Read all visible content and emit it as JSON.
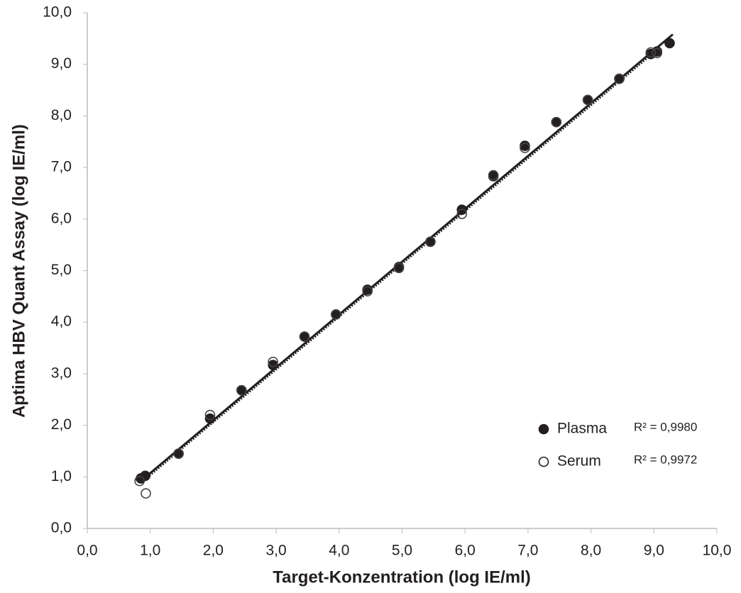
{
  "chart_data": {
    "type": "scatter",
    "x_label": "Target-Konzentration (log IE/ml)",
    "y_label": "Aptima HBV Quant Assay (log IE/ml)",
    "xlim": [
      0,
      10
    ],
    "ylim": [
      0,
      10
    ],
    "xticks": [
      {
        "value": 0,
        "label": "0,0"
      },
      {
        "value": 1,
        "label": "1,0"
      },
      {
        "value": 2,
        "label": "2,0"
      },
      {
        "value": 3,
        "label": "3,0"
      },
      {
        "value": 4,
        "label": "4,0"
      },
      {
        "value": 5,
        "label": "5,0"
      },
      {
        "value": 6,
        "label": "6,0"
      },
      {
        "value": 7,
        "label": "7,0"
      },
      {
        "value": 8,
        "label": "8,0"
      },
      {
        "value": 9,
        "label": "9,0"
      },
      {
        "value": 10,
        "label": "10,0"
      }
    ],
    "yticks": [
      {
        "value": 0,
        "label": "0,0"
      },
      {
        "value": 1,
        "label": "1,0"
      },
      {
        "value": 2,
        "label": "2,0"
      },
      {
        "value": 3,
        "label": "3,0"
      },
      {
        "value": 4,
        "label": "4,0"
      },
      {
        "value": 5,
        "label": "5,0"
      },
      {
        "value": 6,
        "label": "6,0"
      },
      {
        "value": 7,
        "label": "7,0"
      },
      {
        "value": 8,
        "label": "8,0"
      },
      {
        "value": 9,
        "label": "9,0"
      },
      {
        "value": 10,
        "label": "10,0"
      }
    ],
    "legend": "lower right",
    "series": [
      {
        "name": "Plasma",
        "color": "#231f20",
        "filled": true,
        "r_squared": "R² = 0,9980",
        "x": [
          0.85,
          0.92,
          1.45,
          1.95,
          2.45,
          2.95,
          3.45,
          3.95,
          4.45,
          4.95,
          5.45,
          5.95,
          6.45,
          6.95,
          7.45,
          7.95,
          8.45,
          8.95,
          9.05,
          9.25
        ],
        "values": [
          0.97,
          1.02,
          1.45,
          2.13,
          2.68,
          3.17,
          3.72,
          4.15,
          4.63,
          5.07,
          5.56,
          6.18,
          6.83,
          7.42,
          7.88,
          8.31,
          8.72,
          9.2,
          9.25,
          9.41
        ],
        "trend": {
          "x": [
            0.85,
            9.3
          ],
          "values": [
            0.92,
            9.58
          ]
        }
      },
      {
        "name": "Serum",
        "color": "#231f20",
        "filled": false,
        "r_squared": "R² = 0,9972",
        "x": [
          0.83,
          0.93,
          1.45,
          1.95,
          2.45,
          2.95,
          3.45,
          3.95,
          4.45,
          4.95,
          5.45,
          5.95,
          6.45,
          6.95,
          7.45,
          7.95,
          8.45,
          8.95,
          9.05
        ],
        "values": [
          0.92,
          0.68,
          1.45,
          2.2,
          2.68,
          3.23,
          3.72,
          4.15,
          4.6,
          5.05,
          5.56,
          6.1,
          6.85,
          7.38,
          7.88,
          8.31,
          8.72,
          9.23,
          9.22
        ],
        "trend": {
          "x": [
            0.85,
            9.1
          ],
          "values": [
            0.88,
            9.33
          ]
        }
      }
    ]
  }
}
